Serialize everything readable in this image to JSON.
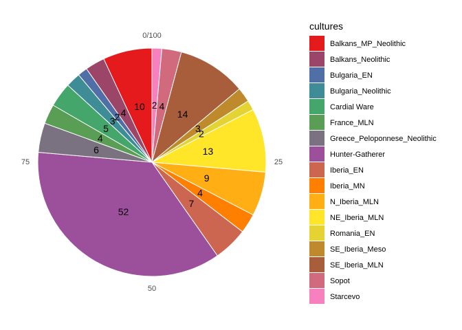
{
  "chart_data": {
    "type": "pie",
    "legend_title": "cultures",
    "legend_position": "right",
    "ticks": [
      "0/100",
      "25",
      "50",
      "75"
    ],
    "tick_values": [
      0,
      25,
      50,
      75
    ],
    "total": 100,
    "grid": false,
    "slices": [
      {
        "name": "Starcevo",
        "value": 2,
        "label": "2",
        "color": "#F781BF"
      },
      {
        "name": "Sopot",
        "value": 4,
        "label": "4",
        "color": "#D16A7D"
      },
      {
        "name": "SE_Iberia_MLN",
        "value": 14,
        "label": "14",
        "color": "#A85D3B"
      },
      {
        "name": "SE_Iberia_Meso",
        "value": 3,
        "label": "3",
        "color": "#BF8A2B"
      },
      {
        "name": "Romania_EN",
        "value": 2,
        "label": "2",
        "color": "#E4D332"
      },
      {
        "name": "NE_Iberia_MLN",
        "value": 13,
        "label": "13",
        "color": "#FFE628"
      },
      {
        "name": "N_Iberia_MLN",
        "value": 9,
        "label": "9",
        "color": "#FFAE13"
      },
      {
        "name": "Iberia_MN",
        "value": 4,
        "label": "4",
        "color": "#FF7F00"
      },
      {
        "name": "Iberia_EN",
        "value": 7,
        "label": "7",
        "color": "#CC6650"
      },
      {
        "name": "Hunter-Gatherer",
        "value": 52,
        "label": "52",
        "color": "#9C509B"
      },
      {
        "name": "Greece_Peloponnese_Neolithic",
        "value": 6,
        "label": "6",
        "color": "#7B7281"
      },
      {
        "name": "France_MLN",
        "value": 4,
        "label": "4",
        "color": "#5A9E56"
      },
      {
        "name": "Cardial Ware",
        "value": 5,
        "label": "5",
        "color": "#45A66C"
      },
      {
        "name": "Bulgaria_Neolithic",
        "value": 3,
        "label": "3",
        "color": "#3E8D96"
      },
      {
        "name": "Bulgaria_EN",
        "value": 2,
        "label": "2",
        "color": "#4F6FA6"
      },
      {
        "name": "Balkans_Neolithic",
        "value": 4,
        "label": "4",
        "color": "#9B4568"
      },
      {
        "name": "Balkans_MP_Neolithic",
        "value": 10,
        "label": "10",
        "color": "#E41A1C"
      }
    ],
    "legend_order": [
      "Balkans_MP_Neolithic",
      "Balkans_Neolithic",
      "Bulgaria_EN",
      "Bulgaria_Neolithic",
      "Cardial Ware",
      "France_MLN",
      "Greece_Peloponnese_Neolithic",
      "Hunter-Gatherer",
      "Iberia_EN",
      "Iberia_MN",
      "N_Iberia_MLN",
      "NE_Iberia_MLN",
      "Romania_EN",
      "SE_Iberia_Meso",
      "SE_Iberia_MLN",
      "Sopot",
      "Starcevo"
    ]
  }
}
